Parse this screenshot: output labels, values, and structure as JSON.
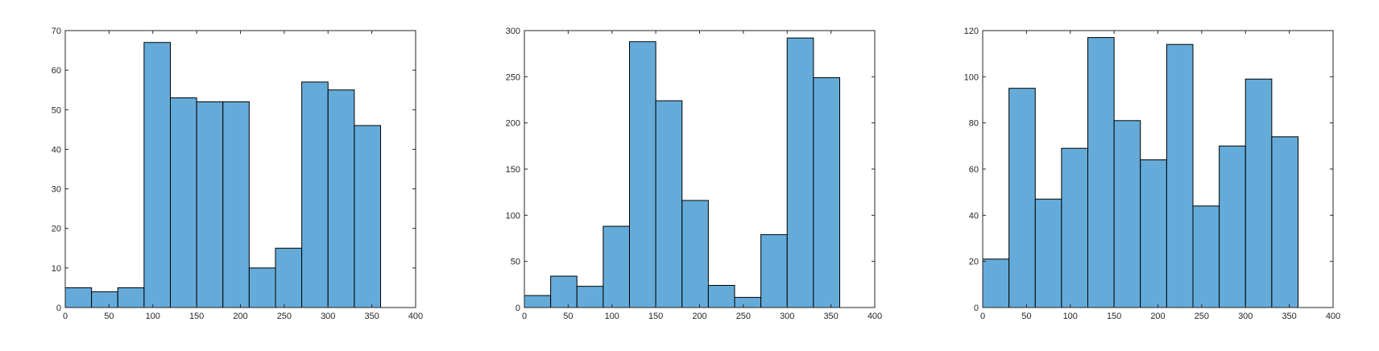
{
  "bar_color": "#64abd9",
  "edge_color": "#000000",
  "chart_data": [
    {
      "type": "bar",
      "bin_edges": [
        0,
        30,
        60,
        90,
        120,
        150,
        180,
        210,
        240,
        270,
        300,
        330,
        360
      ],
      "values": [
        5,
        4,
        5,
        67,
        53,
        52,
        52,
        10,
        15,
        57,
        55,
        46
      ],
      "xlim": [
        0,
        400
      ],
      "ylim": [
        0,
        70
      ],
      "xticks": [
        0,
        50,
        100,
        150,
        200,
        250,
        300,
        350,
        400
      ],
      "yticks": [
        0,
        10,
        20,
        30,
        40,
        50,
        60,
        70
      ],
      "title": "",
      "xlabel": "",
      "ylabel": "",
      "grid": false
    },
    {
      "type": "bar",
      "bin_edges": [
        0,
        30,
        60,
        90,
        120,
        150,
        180,
        210,
        240,
        270,
        300,
        330,
        360
      ],
      "values": [
        13,
        34,
        23,
        88,
        288,
        224,
        116,
        24,
        11,
        79,
        292,
        249
      ],
      "xlim": [
        0,
        400
      ],
      "ylim": [
        0,
        300
      ],
      "xticks": [
        0,
        50,
        100,
        150,
        200,
        250,
        300,
        350,
        400
      ],
      "yticks": [
        0,
        50,
        100,
        150,
        200,
        250,
        300
      ],
      "title": "",
      "xlabel": "",
      "ylabel": "",
      "grid": false
    },
    {
      "type": "bar",
      "bin_edges": [
        0,
        30,
        60,
        90,
        120,
        150,
        180,
        210,
        240,
        270,
        300,
        330,
        360
      ],
      "values": [
        21,
        95,
        47,
        69,
        117,
        81,
        64,
        114,
        44,
        70,
        99,
        74
      ],
      "xlim": [
        0,
        400
      ],
      "ylim": [
        0,
        120
      ],
      "xticks": [
        0,
        50,
        100,
        150,
        200,
        250,
        300,
        350,
        400
      ],
      "yticks": [
        0,
        20,
        40,
        60,
        80,
        100,
        120
      ],
      "title": "",
      "xlabel": "",
      "ylabel": "",
      "grid": false
    }
  ]
}
